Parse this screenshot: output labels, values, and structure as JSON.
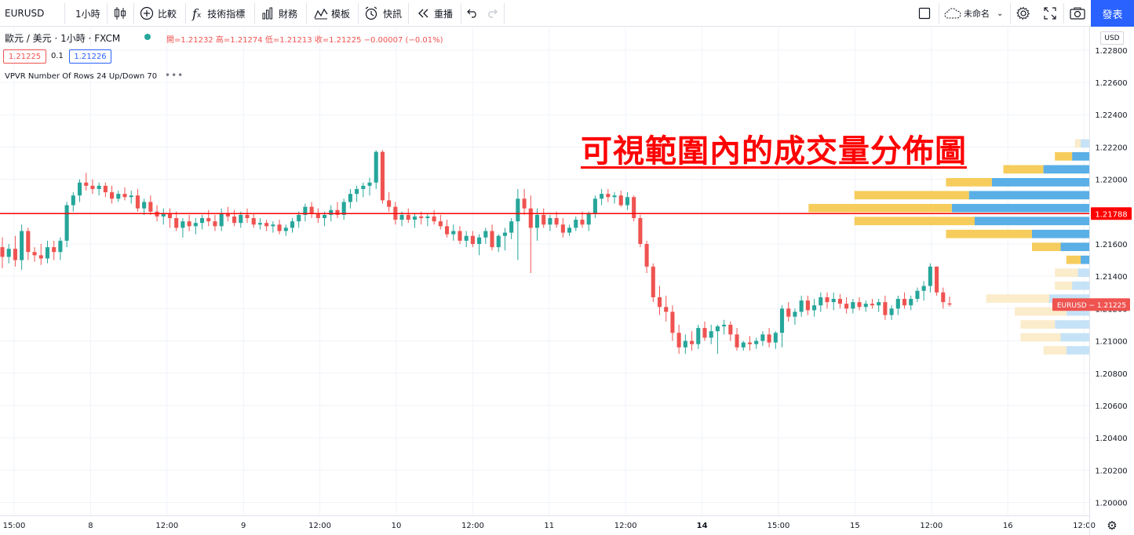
{
  "toolbar": {
    "symbol": "EURUSD",
    "interval": "1小時",
    "compare_label": "比較",
    "indicators_label": "技術指標",
    "financials_label": "財務",
    "templates_label": "模板",
    "alert_label": "快訊",
    "replay_label": "重播",
    "layout_name": "未命名",
    "publish_label": "發表"
  },
  "legend": {
    "title": "歐元 / 美元 · 1小時 · FXCM",
    "ohlc": "開=1.21232  高=1.21274  低=1.21213  收=1.21225  −0.00007 (−0.01%)",
    "bid": "1.21225",
    "spread": "0.1",
    "ask": "1.21226",
    "indicator": "VPVR Number Of Rows 24 Up/Down 70",
    "indicator_more": "•••"
  },
  "currency_label": "USD",
  "annotation": "可視範圍內的成交量分佈圖",
  "colors": {
    "up": "#26a69a",
    "down": "#ef5350",
    "poc_line": "#ff0000",
    "vp_up": "#5aafe6",
    "vp_down": "#f6cc5c",
    "grid": "#f0f3fa"
  },
  "chart_data": {
    "type": "candlestick",
    "y_ticks": [
      "1.22800",
      "1.22600",
      "1.22400",
      "1.22200",
      "1.22000",
      "1.21800",
      "1.21600",
      "1.21400",
      "1.21200",
      "1.21000",
      "1.20800",
      "1.20600",
      "1.20400",
      "1.20200",
      "1.20000"
    ],
    "x_ticks": [
      "15:00",
      "8",
      "12:00",
      "9",
      "12:00",
      "10",
      "12:00",
      "11",
      "12:00",
      "14",
      "15:00",
      "15",
      "12:00",
      "16",
      "12:00"
    ],
    "ylim": [
      1.1992,
      1.2294
    ],
    "poc_price": 1.21788,
    "poc_label": "1.21788",
    "last_price": 1.21225,
    "last_label": "EURUSD − 1.21225",
    "candles": [
      [
        1.2158,
        1.2164,
        1.2145,
        1.2152
      ],
      [
        1.2152,
        1.216,
        1.2148,
        1.2157
      ],
      [
        1.2157,
        1.2165,
        1.2146,
        1.215
      ],
      [
        1.215,
        1.2172,
        1.2144,
        1.2168
      ],
      [
        1.2168,
        1.217,
        1.215,
        1.2155
      ],
      [
        1.2155,
        1.2158,
        1.2149,
        1.2153
      ],
      [
        1.2153,
        1.216,
        1.2147,
        1.2151
      ],
      [
        1.2151,
        1.2162,
        1.2148,
        1.2158
      ],
      [
        1.2158,
        1.2162,
        1.215,
        1.2155
      ],
      [
        1.2155,
        1.2164,
        1.215,
        1.2162
      ],
      [
        1.2162,
        1.2186,
        1.2158,
        1.2184
      ],
      [
        1.2184,
        1.2192,
        1.218,
        1.219
      ],
      [
        1.219,
        1.22,
        1.2186,
        1.2198
      ],
      [
        1.2198,
        1.2204,
        1.2193,
        1.2196
      ],
      [
        1.2196,
        1.22,
        1.2191,
        1.2194
      ],
      [
        1.2194,
        1.2198,
        1.219,
        1.2196
      ],
      [
        1.2196,
        1.2198,
        1.2189,
        1.2192
      ],
      [
        1.2192,
        1.2196,
        1.2185,
        1.2188
      ],
      [
        1.2188,
        1.2193,
        1.2186,
        1.2191
      ],
      [
        1.2191,
        1.2195,
        1.2187,
        1.2189
      ],
      [
        1.2189,
        1.2193,
        1.2185,
        1.219
      ],
      [
        1.219,
        1.2194,
        1.218,
        1.2182
      ],
      [
        1.2182,
        1.2188,
        1.2178,
        1.2186
      ],
      [
        1.2186,
        1.219,
        1.2178,
        1.218
      ],
      [
        1.218,
        1.2184,
        1.2174,
        1.2177
      ],
      [
        1.2177,
        1.2182,
        1.2172,
        1.2179
      ],
      [
        1.2179,
        1.2182,
        1.217,
        1.2176
      ],
      [
        1.2176,
        1.218,
        1.2168,
        1.217
      ],
      [
        1.217,
        1.2176,
        1.2164,
        1.2174
      ],
      [
        1.2174,
        1.2178,
        1.2168,
        1.2171
      ],
      [
        1.2171,
        1.2176,
        1.2166,
        1.2173
      ],
      [
        1.2173,
        1.2178,
        1.2169,
        1.2176
      ],
      [
        1.2176,
        1.2181,
        1.2171,
        1.2174
      ],
      [
        1.2174,
        1.2178,
        1.2168,
        1.2171
      ],
      [
        1.2171,
        1.2182,
        1.2168,
        1.2179
      ],
      [
        1.2179,
        1.2183,
        1.2174,
        1.2177
      ],
      [
        1.2177,
        1.2181,
        1.2171,
        1.2173
      ],
      [
        1.2173,
        1.218,
        1.217,
        1.2178
      ],
      [
        1.2178,
        1.2182,
        1.2173,
        1.2176
      ],
      [
        1.2176,
        1.2179,
        1.217,
        1.2172
      ],
      [
        1.2172,
        1.2176,
        1.2169,
        1.2173
      ],
      [
        1.2173,
        1.2175,
        1.2168,
        1.2171
      ],
      [
        1.2171,
        1.2174,
        1.2167,
        1.2172
      ],
      [
        1.2172,
        1.2175,
        1.2166,
        1.2168
      ],
      [
        1.2168,
        1.2172,
        1.2165,
        1.217
      ],
      [
        1.217,
        1.2176,
        1.2167,
        1.2174
      ],
      [
        1.2174,
        1.218,
        1.217,
        1.2178
      ],
      [
        1.2178,
        1.2185,
        1.2174,
        1.2183
      ],
      [
        1.2183,
        1.2186,
        1.2176,
        1.2179
      ],
      [
        1.2179,
        1.2182,
        1.2173,
        1.2176
      ],
      [
        1.2176,
        1.218,
        1.2171,
        1.2178
      ],
      [
        1.2178,
        1.2184,
        1.2174,
        1.2181
      ],
      [
        1.2181,
        1.2186,
        1.2176,
        1.2178
      ],
      [
        1.2178,
        1.2188,
        1.2175,
        1.2186
      ],
      [
        1.2186,
        1.2194,
        1.2182,
        1.2191
      ],
      [
        1.2191,
        1.2196,
        1.2186,
        1.2194
      ],
      [
        1.2194,
        1.2198,
        1.2189,
        1.2196
      ],
      [
        1.2196,
        1.2201,
        1.219,
        1.2198
      ],
      [
        1.2198,
        1.2218,
        1.2194,
        1.2217
      ],
      [
        1.2217,
        1.2218,
        1.2185,
        1.2187
      ],
      [
        1.2187,
        1.2192,
        1.218,
        1.2183
      ],
      [
        1.2183,
        1.2186,
        1.2172,
        1.2175
      ],
      [
        1.2175,
        1.218,
        1.2171,
        1.2178
      ],
      [
        1.2178,
        1.2182,
        1.2173,
        1.2175
      ],
      [
        1.2175,
        1.2179,
        1.217,
        1.2177
      ],
      [
        1.2177,
        1.218,
        1.2172,
        1.2176
      ],
      [
        1.2176,
        1.2179,
        1.2171,
        1.2177
      ],
      [
        1.2177,
        1.2181,
        1.2172,
        1.2174
      ],
      [
        1.2174,
        1.2178,
        1.2169,
        1.2171
      ],
      [
        1.2171,
        1.2175,
        1.2164,
        1.2166
      ],
      [
        1.2166,
        1.2172,
        1.2162,
        1.2168
      ],
      [
        1.2168,
        1.2171,
        1.216,
        1.2162
      ],
      [
        1.2162,
        1.2168,
        1.2158,
        1.2165
      ],
      [
        1.2165,
        1.2168,
        1.2158,
        1.216
      ],
      [
        1.216,
        1.2166,
        1.2153,
        1.2164
      ],
      [
        1.2164,
        1.217,
        1.216,
        1.2168
      ],
      [
        1.2168,
        1.2172,
        1.2156,
        1.2158
      ],
      [
        1.2158,
        1.2166,
        1.2155,
        1.2165
      ],
      [
        1.2165,
        1.217,
        1.2156,
        1.2167
      ],
      [
        1.2167,
        1.2176,
        1.2163,
        1.2174
      ],
      [
        1.2174,
        1.2194,
        1.215,
        1.2188
      ],
      [
        1.2188,
        1.2194,
        1.2178,
        1.2182
      ],
      [
        1.2182,
        1.219,
        1.2142,
        1.217
      ],
      [
        1.217,
        1.2182,
        1.2162,
        1.2178
      ],
      [
        1.2178,
        1.2182,
        1.217,
        1.2172
      ],
      [
        1.2172,
        1.2178,
        1.2168,
        1.2176
      ],
      [
        1.2176,
        1.218,
        1.217,
        1.2172
      ],
      [
        1.2172,
        1.2176,
        1.2164,
        1.2167
      ],
      [
        1.2167,
        1.2172,
        1.2165,
        1.217
      ],
      [
        1.217,
        1.2177,
        1.2168,
        1.2175
      ],
      [
        1.2175,
        1.218,
        1.217,
        1.2172
      ],
      [
        1.2172,
        1.218,
        1.2168,
        1.2179
      ],
      [
        1.2179,
        1.219,
        1.2176,
        1.2188
      ],
      [
        1.2188,
        1.2194,
        1.2184,
        1.2191
      ],
      [
        1.2191,
        1.2194,
        1.2186,
        1.2189
      ],
      [
        1.2189,
        1.2192,
        1.2185,
        1.219
      ],
      [
        1.219,
        1.2193,
        1.2183,
        1.2184
      ],
      [
        1.2184,
        1.2192,
        1.2181,
        1.2189
      ],
      [
        1.2189,
        1.219,
        1.2174,
        1.2176
      ],
      [
        1.2176,
        1.2178,
        1.2158,
        1.216
      ],
      [
        1.216,
        1.2162,
        1.2142,
        1.2146
      ],
      [
        1.2146,
        1.2148,
        1.2124,
        1.2127
      ],
      [
        1.2127,
        1.2134,
        1.2116,
        1.2121
      ],
      [
        1.2121,
        1.2128,
        1.2112,
        1.2118
      ],
      [
        1.2118,
        1.2122,
        1.21,
        1.2105
      ],
      [
        1.2105,
        1.211,
        1.2092,
        1.2096
      ],
      [
        1.2096,
        1.2104,
        1.2092,
        1.21
      ],
      [
        1.21,
        1.2106,
        1.2094,
        1.2098
      ],
      [
        1.2098,
        1.211,
        1.2095,
        1.2108
      ],
      [
        1.2108,
        1.2112,
        1.21,
        1.2102
      ],
      [
        1.2102,
        1.211,
        1.2098,
        1.2106
      ],
      [
        1.2106,
        1.211,
        1.2092,
        1.2109
      ],
      [
        1.2109,
        1.2113,
        1.2104,
        1.211
      ],
      [
        1.211,
        1.2112,
        1.21,
        1.2104
      ],
      [
        1.2104,
        1.2108,
        1.2094,
        1.2096
      ],
      [
        1.2096,
        1.21,
        1.2094,
        1.2099
      ],
      [
        1.2099,
        1.2103,
        1.2094,
        1.2098
      ],
      [
        1.2098,
        1.2102,
        1.2095,
        1.21
      ],
      [
        1.21,
        1.2106,
        1.2097,
        1.2104
      ],
      [
        1.2104,
        1.2108,
        1.2096,
        1.2099
      ],
      [
        1.2099,
        1.2106,
        1.2095,
        1.2105
      ],
      [
        1.2105,
        1.2122,
        1.2096,
        1.212
      ],
      [
        1.212,
        1.2124,
        1.2112,
        1.2115
      ],
      [
        1.2115,
        1.212,
        1.211,
        1.2118
      ],
      [
        1.2118,
        1.2128,
        1.2115,
        1.2125
      ],
      [
        1.2125,
        1.2128,
        1.2116,
        1.2119
      ],
      [
        1.2119,
        1.2126,
        1.2115,
        1.2122
      ],
      [
        1.2122,
        1.213,
        1.2118,
        1.2127
      ],
      [
        1.2127,
        1.213,
        1.212,
        1.2124
      ],
      [
        1.2124,
        1.213,
        1.2119,
        1.2126
      ],
      [
        1.2126,
        1.2129,
        1.212,
        1.2123
      ],
      [
        1.2123,
        1.2127,
        1.2117,
        1.212
      ],
      [
        1.212,
        1.2126,
        1.2117,
        1.2124
      ],
      [
        1.2124,
        1.2127,
        1.2119,
        1.2121
      ],
      [
        1.2121,
        1.2125,
        1.2118,
        1.2123
      ],
      [
        1.2123,
        1.2126,
        1.212,
        1.2122
      ],
      [
        1.2122,
        1.2126,
        1.2118,
        1.2124
      ],
      [
        1.2124,
        1.2128,
        1.2113,
        1.2116
      ],
      [
        1.2116,
        1.2122,
        1.2113,
        1.212
      ],
      [
        1.212,
        1.2128,
        1.2116,
        1.2126
      ],
      [
        1.2126,
        1.213,
        1.212,
        1.2122
      ],
      [
        1.2122,
        1.2128,
        1.2119,
        1.2126
      ],
      [
        1.2126,
        1.2133,
        1.2124,
        1.2131
      ],
      [
        1.2131,
        1.2137,
        1.2125,
        1.2134
      ],
      [
        1.2134,
        1.2148,
        1.213,
        1.2146
      ],
      [
        1.2146,
        1.2146,
        1.2128,
        1.213
      ],
      [
        1.213,
        1.2133,
        1.212,
        1.2124
      ],
      [
        1.21232,
        1.21274,
        1.21213,
        1.21225
      ]
    ],
    "volume_profile": [
      {
        "price": 1.2094,
        "up": 0.08,
        "down": 0.08
      },
      {
        "price": 1.2102,
        "up": 0.1,
        "down": 0.14
      },
      {
        "price": 1.211,
        "up": 0.12,
        "down": 0.12
      },
      {
        "price": 1.2118,
        "up": 0.08,
        "down": 0.18
      },
      {
        "price": 1.2126,
        "up": 0.14,
        "down": 0.22
      },
      {
        "price": 1.2134,
        "up": 0.06,
        "down": 0.06
      },
      {
        "price": 1.2142,
        "up": 0.04,
        "down": 0.08
      },
      {
        "price": 1.215,
        "up": 0.03,
        "down": 0.05
      },
      {
        "price": 1.2158,
        "up": 0.1,
        "down": 0.1
      },
      {
        "price": 1.2166,
        "up": 0.2,
        "down": 0.3
      },
      {
        "price": 1.2174,
        "up": 0.4,
        "down": 0.42
      },
      {
        "price": 1.2182,
        "up": 0.48,
        "down": 0.5
      },
      {
        "price": 1.219,
        "up": 0.42,
        "down": 0.4
      },
      {
        "price": 1.2198,
        "up": 0.34,
        "down": 0.16
      },
      {
        "price": 1.2206,
        "up": 0.16,
        "down": 0.14
      },
      {
        "price": 1.2214,
        "up": 0.06,
        "down": 0.06
      },
      {
        "price": 1.2222,
        "up": 0.03,
        "down": 0.02
      }
    ]
  }
}
